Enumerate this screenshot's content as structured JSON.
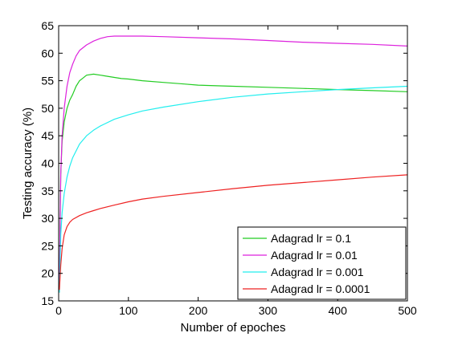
{
  "chart_data": {
    "type": "line",
    "title": "",
    "xlabel": "Number of epoches",
    "ylabel": "Testing accuracy (%)",
    "xlim": [
      0,
      500
    ],
    "ylim": [
      15,
      65
    ],
    "xticks": [
      "0",
      "100",
      "200",
      "300",
      "400",
      "500"
    ],
    "yticks": [
      "15",
      "20",
      "25",
      "30",
      "35",
      "40",
      "45",
      "50",
      "55",
      "60",
      "65"
    ],
    "grid": false,
    "legend_position": "bottom-right",
    "series": [
      {
        "name": "Adagrad lr = 0.1",
        "color": "#22cc22",
        "x": [
          1,
          3,
          5,
          8,
          12,
          16,
          20,
          25,
          30,
          35,
          40,
          50,
          60,
          70,
          80,
          90,
          100,
          120,
          150,
          180,
          200,
          250,
          300,
          350,
          400,
          450,
          500
        ],
        "y": [
          18,
          38,
          44,
          47.5,
          50,
          51.5,
          52.5,
          54,
          55,
          55.5,
          56,
          56.2,
          56,
          55.8,
          55.6,
          55.4,
          55.3,
          55,
          54.7,
          54.4,
          54.2,
          54,
          53.8,
          53.6,
          53.4,
          53.2,
          53
        ]
      },
      {
        "name": "Adagrad lr = 0.01",
        "color": "#dd22dd",
        "x": [
          1,
          3,
          5,
          8,
          12,
          16,
          20,
          25,
          30,
          40,
          50,
          60,
          70,
          80,
          90,
          100,
          120,
          150,
          200,
          250,
          300,
          350,
          400,
          450,
          500
        ],
        "y": [
          18,
          38,
          45,
          50,
          54,
          56.5,
          58,
          59.5,
          60.5,
          61.5,
          62.2,
          62.7,
          63,
          63.1,
          63.1,
          63.1,
          63.1,
          63,
          62.8,
          62.6,
          62.3,
          62,
          61.8,
          61.6,
          61.3
        ]
      },
      {
        "name": "Adagrad lr = 0.001",
        "color": "#22eeee",
        "x": [
          1,
          3,
          5,
          8,
          12,
          16,
          20,
          30,
          40,
          50,
          60,
          80,
          100,
          120,
          150,
          200,
          250,
          300,
          350,
          400,
          450,
          500
        ],
        "y": [
          16.5,
          27,
          31,
          34.5,
          37.5,
          39.5,
          41,
          43.5,
          45,
          46,
          46.8,
          48,
          48.8,
          49.5,
          50.2,
          51.2,
          52,
          52.6,
          53,
          53.4,
          53.7,
          54
        ]
      },
      {
        "name": "Adagrad lr = 0.0001",
        "color": "#ee2222",
        "x": [
          1,
          3,
          5,
          8,
          12,
          16,
          20,
          30,
          40,
          50,
          60,
          80,
          100,
          120,
          150,
          200,
          250,
          300,
          350,
          400,
          450,
          500
        ],
        "y": [
          17,
          21.5,
          24.5,
          27,
          28.5,
          29.3,
          29.8,
          30.5,
          31,
          31.4,
          31.8,
          32.4,
          33,
          33.5,
          34,
          34.7,
          35.4,
          36,
          36.5,
          37,
          37.5,
          37.9
        ]
      }
    ]
  }
}
